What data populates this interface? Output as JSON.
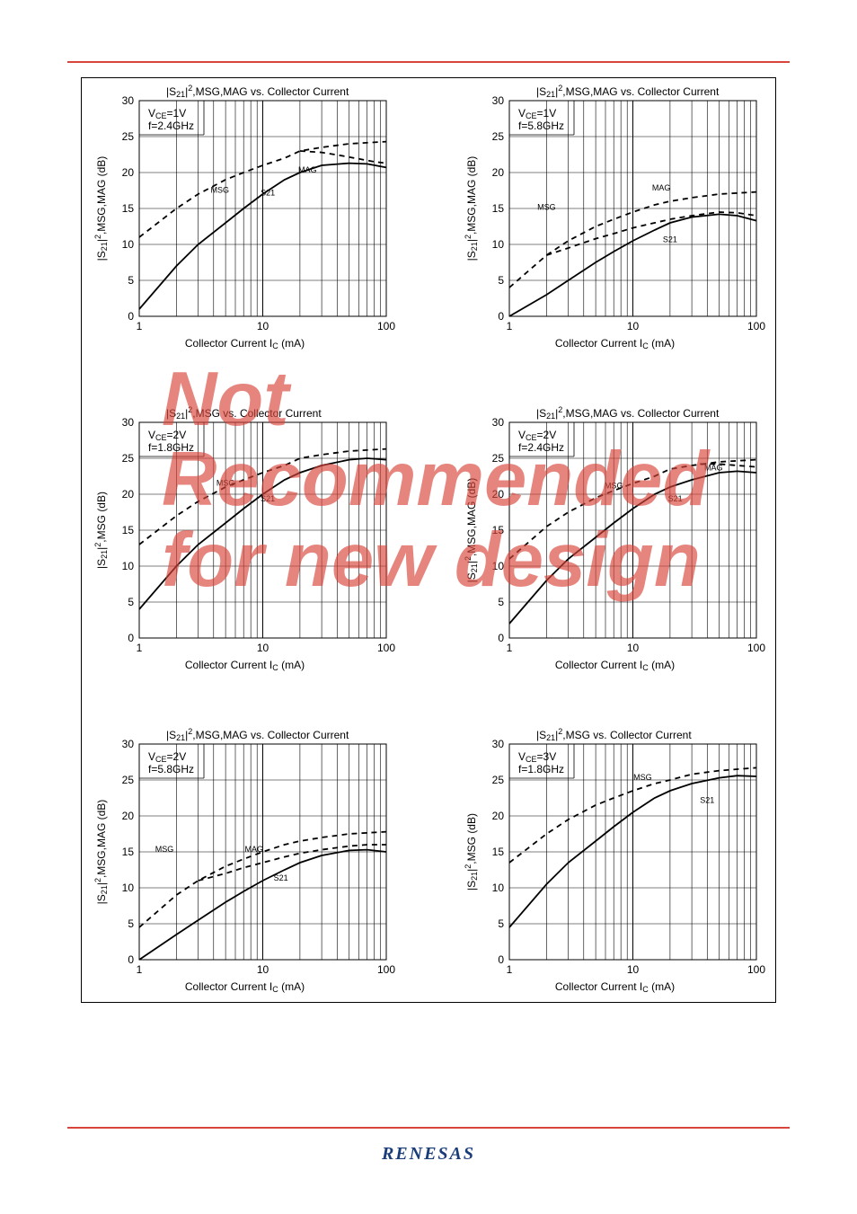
{
  "page": {
    "background_color": "#ffffff",
    "rule_color": "#d9453a",
    "frame_color": "#000000",
    "logo_text": "RENESAS",
    "logo_color": "#1a3d7a",
    "watermark_text": "Not Recommended for new design",
    "watermark_color": "#d9453a"
  },
  "chart_defaults": {
    "type": "line-logx",
    "xlim": [
      1,
      100
    ],
    "ylim": [
      0,
      30
    ],
    "ytick_step": 5,
    "xticks": [
      1,
      10,
      100
    ],
    "xlabel_prefix": "Collector Current   I",
    "xlabel_sub": "C",
    "xlabel_suffix": " (mA)",
    "title_prefix": "|S",
    "title_s_sub": "21",
    "title_sq": "|",
    "line_color": "#000000",
    "grid_color": "#000000",
    "axis_fontsize": 12,
    "tick_fontsize": 12,
    "label_fontsize": 9,
    "line_width_solid": 1.8,
    "line_width_dash": 1.8,
    "dash_pattern": "6,5"
  },
  "charts": [
    {
      "id": "c1",
      "title_mid": ",MSG,MAG vs. Collector Current",
      "ylabel_mid": ",MSG,MAG (dB)",
      "cond1": "V",
      "cond1_sub": "CE",
      "cond1_rest": "=1V",
      "cond2": "f=2.4GHz",
      "series": [
        {
          "name": "MSG",
          "style": "dash",
          "label_x": 4.5,
          "label_y": 17.2,
          "points": [
            [
              1,
              11
            ],
            [
              2,
              15
            ],
            [
              3,
              17
            ],
            [
              5,
              19
            ],
            [
              7,
              20
            ],
            [
              10,
              21
            ],
            [
              15,
              22
            ],
            [
              20,
              23
            ],
            [
              30,
              23.5
            ],
            [
              50,
              24
            ],
            [
              100,
              24.3
            ]
          ]
        },
        {
          "name": "MAG",
          "style": "dash",
          "label_x": 23,
          "label_y": 20,
          "points": [
            [
              20,
              23
            ],
            [
              30,
              22.8
            ],
            [
              45,
              22.3
            ],
            [
              60,
              21.9
            ],
            [
              80,
              21.5
            ],
            [
              100,
              21.3
            ]
          ]
        },
        {
          "name": "S21",
          "style": "solid",
          "label_x": 11,
          "label_y": 16.8,
          "points": [
            [
              1,
              1
            ],
            [
              2,
              7
            ],
            [
              3,
              10
            ],
            [
              5,
              13
            ],
            [
              7,
              15
            ],
            [
              10,
              17
            ],
            [
              15,
              19
            ],
            [
              20,
              20
            ],
            [
              30,
              21
            ],
            [
              50,
              21.3
            ],
            [
              70,
              21.2
            ],
            [
              100,
              20.7
            ]
          ]
        }
      ]
    },
    {
      "id": "c2",
      "title_mid": ",MSG,MAG vs. Collector Current",
      "ylabel_mid": ",MSG,MAG (dB)",
      "cond1": "V",
      "cond1_sub": "CE",
      "cond1_rest": "=1V",
      "cond2": "f=5.8GHz",
      "series": [
        {
          "name": "MSG",
          "style": "dash",
          "label_x": 2.0,
          "label_y": 14.8,
          "points": [
            [
              1,
              4
            ],
            [
              2,
              8.5
            ],
            [
              3,
              10.5
            ],
            [
              5,
              12.5
            ],
            [
              7,
              13.5
            ],
            [
              10,
              14.5
            ],
            [
              15,
              15.5
            ],
            [
              20,
              16
            ],
            [
              30,
              16.5
            ],
            [
              50,
              17
            ],
            [
              100,
              17.3
            ]
          ]
        },
        {
          "name": "MAG",
          "style": "dash",
          "label_x": 17,
          "label_y": 17.5,
          "points": [
            [
              2,
              8.5
            ],
            [
              3,
              9.5
            ],
            [
              5,
              10.8
            ],
            [
              7,
              11.5
            ],
            [
              10,
              12.3
            ],
            [
              15,
              13
            ],
            [
              20,
              13.5
            ],
            [
              30,
              14
            ],
            [
              50,
              14.5
            ],
            [
              70,
              14.4
            ],
            [
              100,
              14
            ]
          ]
        },
        {
          "name": "S21",
          "style": "solid",
          "label_x": 20,
          "label_y": 10.3,
          "points": [
            [
              1,
              0
            ],
            [
              2,
              3
            ],
            [
              3,
              5
            ],
            [
              5,
              7.5
            ],
            [
              7,
              9
            ],
            [
              10,
              10.5
            ],
            [
              15,
              12
            ],
            [
              20,
              13
            ],
            [
              30,
              13.8
            ],
            [
              50,
              14.2
            ],
            [
              70,
              14
            ],
            [
              100,
              13.3
            ]
          ]
        }
      ]
    },
    {
      "id": "c3",
      "title_mid": ",MSG vs. Collector Current",
      "ylabel_mid": ",MSG (dB)",
      "cond1": "V",
      "cond1_sub": "CE",
      "cond1_rest": "=2V",
      "cond2": "f=1.8GHz",
      "series": [
        {
          "name": "MSG",
          "style": "dash",
          "label_x": 5,
          "label_y": 21.2,
          "points": [
            [
              1,
              13
            ],
            [
              2,
              17
            ],
            [
              3,
              19
            ],
            [
              5,
              21
            ],
            [
              7,
              22
            ],
            [
              10,
              23
            ],
            [
              15,
              24
            ],
            [
              20,
              25
            ],
            [
              30,
              25.5
            ],
            [
              50,
              26
            ],
            [
              100,
              26.3
            ]
          ]
        },
        {
          "name": "S21",
          "style": "solid",
          "label_x": 11,
          "label_y": 19,
          "points": [
            [
              1,
              4
            ],
            [
              2,
              10
            ],
            [
              3,
              13
            ],
            [
              5,
              16
            ],
            [
              7,
              18
            ],
            [
              10,
              20
            ],
            [
              15,
              22
            ],
            [
              20,
              23
            ],
            [
              30,
              24
            ],
            [
              50,
              24.8
            ],
            [
              70,
              25
            ],
            [
              100,
              24.8
            ]
          ]
        }
      ]
    },
    {
      "id": "c4",
      "title_mid": ",MSG,MAG vs. Collector Current",
      "ylabel_mid": ",MSG,MAG (dB)",
      "cond1": "V",
      "cond1_sub": "CE",
      "cond1_rest": "=2V",
      "cond2": "f=2.4GHz",
      "series": [
        {
          "name": "MSG",
          "style": "dash",
          "label_x": 7,
          "label_y": 20.8,
          "points": [
            [
              1,
              11
            ],
            [
              2,
              15.5
            ],
            [
              3,
              17.5
            ],
            [
              5,
              19.5
            ],
            [
              7,
              20.5
            ],
            [
              10,
              21.5
            ],
            [
              15,
              22.5
            ],
            [
              20,
              23.5
            ],
            [
              30,
              24
            ],
            [
              50,
              24.5
            ],
            [
              100,
              24.8
            ]
          ]
        },
        {
          "name": "MAG",
          "style": "dash",
          "label_x": 45,
          "label_y": 23.3,
          "points": [
            [
              35,
              24.2
            ],
            [
              50,
              24.2
            ],
            [
              70,
              24.0
            ],
            [
              100,
              23.8
            ]
          ]
        },
        {
          "name": "S21",
          "style": "solid",
          "label_x": 22,
          "label_y": 19,
          "points": [
            [
              1,
              2
            ],
            [
              2,
              8
            ],
            [
              3,
              11
            ],
            [
              5,
              14
            ],
            [
              7,
              16
            ],
            [
              10,
              18
            ],
            [
              15,
              20
            ],
            [
              20,
              21
            ],
            [
              30,
              22
            ],
            [
              50,
              23
            ],
            [
              70,
              23.2
            ],
            [
              100,
              23
            ]
          ]
        }
      ]
    },
    {
      "id": "c5",
      "title_mid": ",MSG,MAG vs. Collector Current",
      "ylabel_mid": ",MSG,MAG (dB)",
      "cond1": "V",
      "cond1_sub": "CE",
      "cond1_rest": "=2V",
      "cond2": "f=5.8GHz",
      "series": [
        {
          "name": "MSG",
          "style": "dash",
          "label_x": 1.6,
          "label_y": 15,
          "points": [
            [
              1,
              4.5
            ],
            [
              2,
              9
            ],
            [
              3,
              11
            ],
            [
              5,
              13
            ],
            [
              7,
              14
            ],
            [
              10,
              15
            ],
            [
              15,
              16
            ],
            [
              20,
              16.5
            ],
            [
              30,
              17
            ],
            [
              50,
              17.5
            ],
            [
              100,
              17.8
            ]
          ]
        },
        {
          "name": "MAG",
          "style": "dash",
          "label_x": 8.5,
          "label_y": 15,
          "points": [
            [
              3,
              11
            ],
            [
              5,
              12
            ],
            [
              7,
              12.8
            ],
            [
              10,
              13.5
            ],
            [
              15,
              14.3
            ],
            [
              20,
              14.8
            ],
            [
              30,
              15.3
            ],
            [
              50,
              15.8
            ],
            [
              70,
              16
            ],
            [
              100,
              16
            ]
          ]
        },
        {
          "name": "S21",
          "style": "solid",
          "label_x": 14,
          "label_y": 11,
          "points": [
            [
              1,
              0
            ],
            [
              2,
              3.5
            ],
            [
              3,
              5.5
            ],
            [
              5,
              8
            ],
            [
              7,
              9.5
            ],
            [
              10,
              11
            ],
            [
              15,
              12.5
            ],
            [
              20,
              13.5
            ],
            [
              30,
              14.5
            ],
            [
              50,
              15.2
            ],
            [
              70,
              15.3
            ],
            [
              100,
              15
            ]
          ]
        }
      ]
    },
    {
      "id": "c6",
      "title_mid": ",MSG vs. Collector Current",
      "ylabel_mid": ",MSG (dB)",
      "cond1": "V",
      "cond1_sub": "CE",
      "cond1_rest": "=3V",
      "cond2": "f=1.8GHz",
      "series": [
        {
          "name": "MSG",
          "style": "dash",
          "label_x": 12,
          "label_y": 25,
          "points": [
            [
              1,
              13.5
            ],
            [
              2,
              17.5
            ],
            [
              3,
              19.5
            ],
            [
              5,
              21.5
            ],
            [
              7,
              22.5
            ],
            [
              10,
              23.5
            ],
            [
              15,
              24.5
            ],
            [
              20,
              25
            ],
            [
              30,
              25.8
            ],
            [
              50,
              26.3
            ],
            [
              100,
              26.7
            ]
          ]
        },
        {
          "name": "S21",
          "style": "solid",
          "label_x": 40,
          "label_y": 21.8,
          "points": [
            [
              1,
              4.5
            ],
            [
              2,
              10.5
            ],
            [
              3,
              13.5
            ],
            [
              5,
              16.5
            ],
            [
              7,
              18.5
            ],
            [
              10,
              20.5
            ],
            [
              15,
              22.5
            ],
            [
              20,
              23.5
            ],
            [
              30,
              24.5
            ],
            [
              50,
              25.3
            ],
            [
              70,
              25.6
            ],
            [
              100,
              25.5
            ]
          ]
        }
      ]
    }
  ]
}
